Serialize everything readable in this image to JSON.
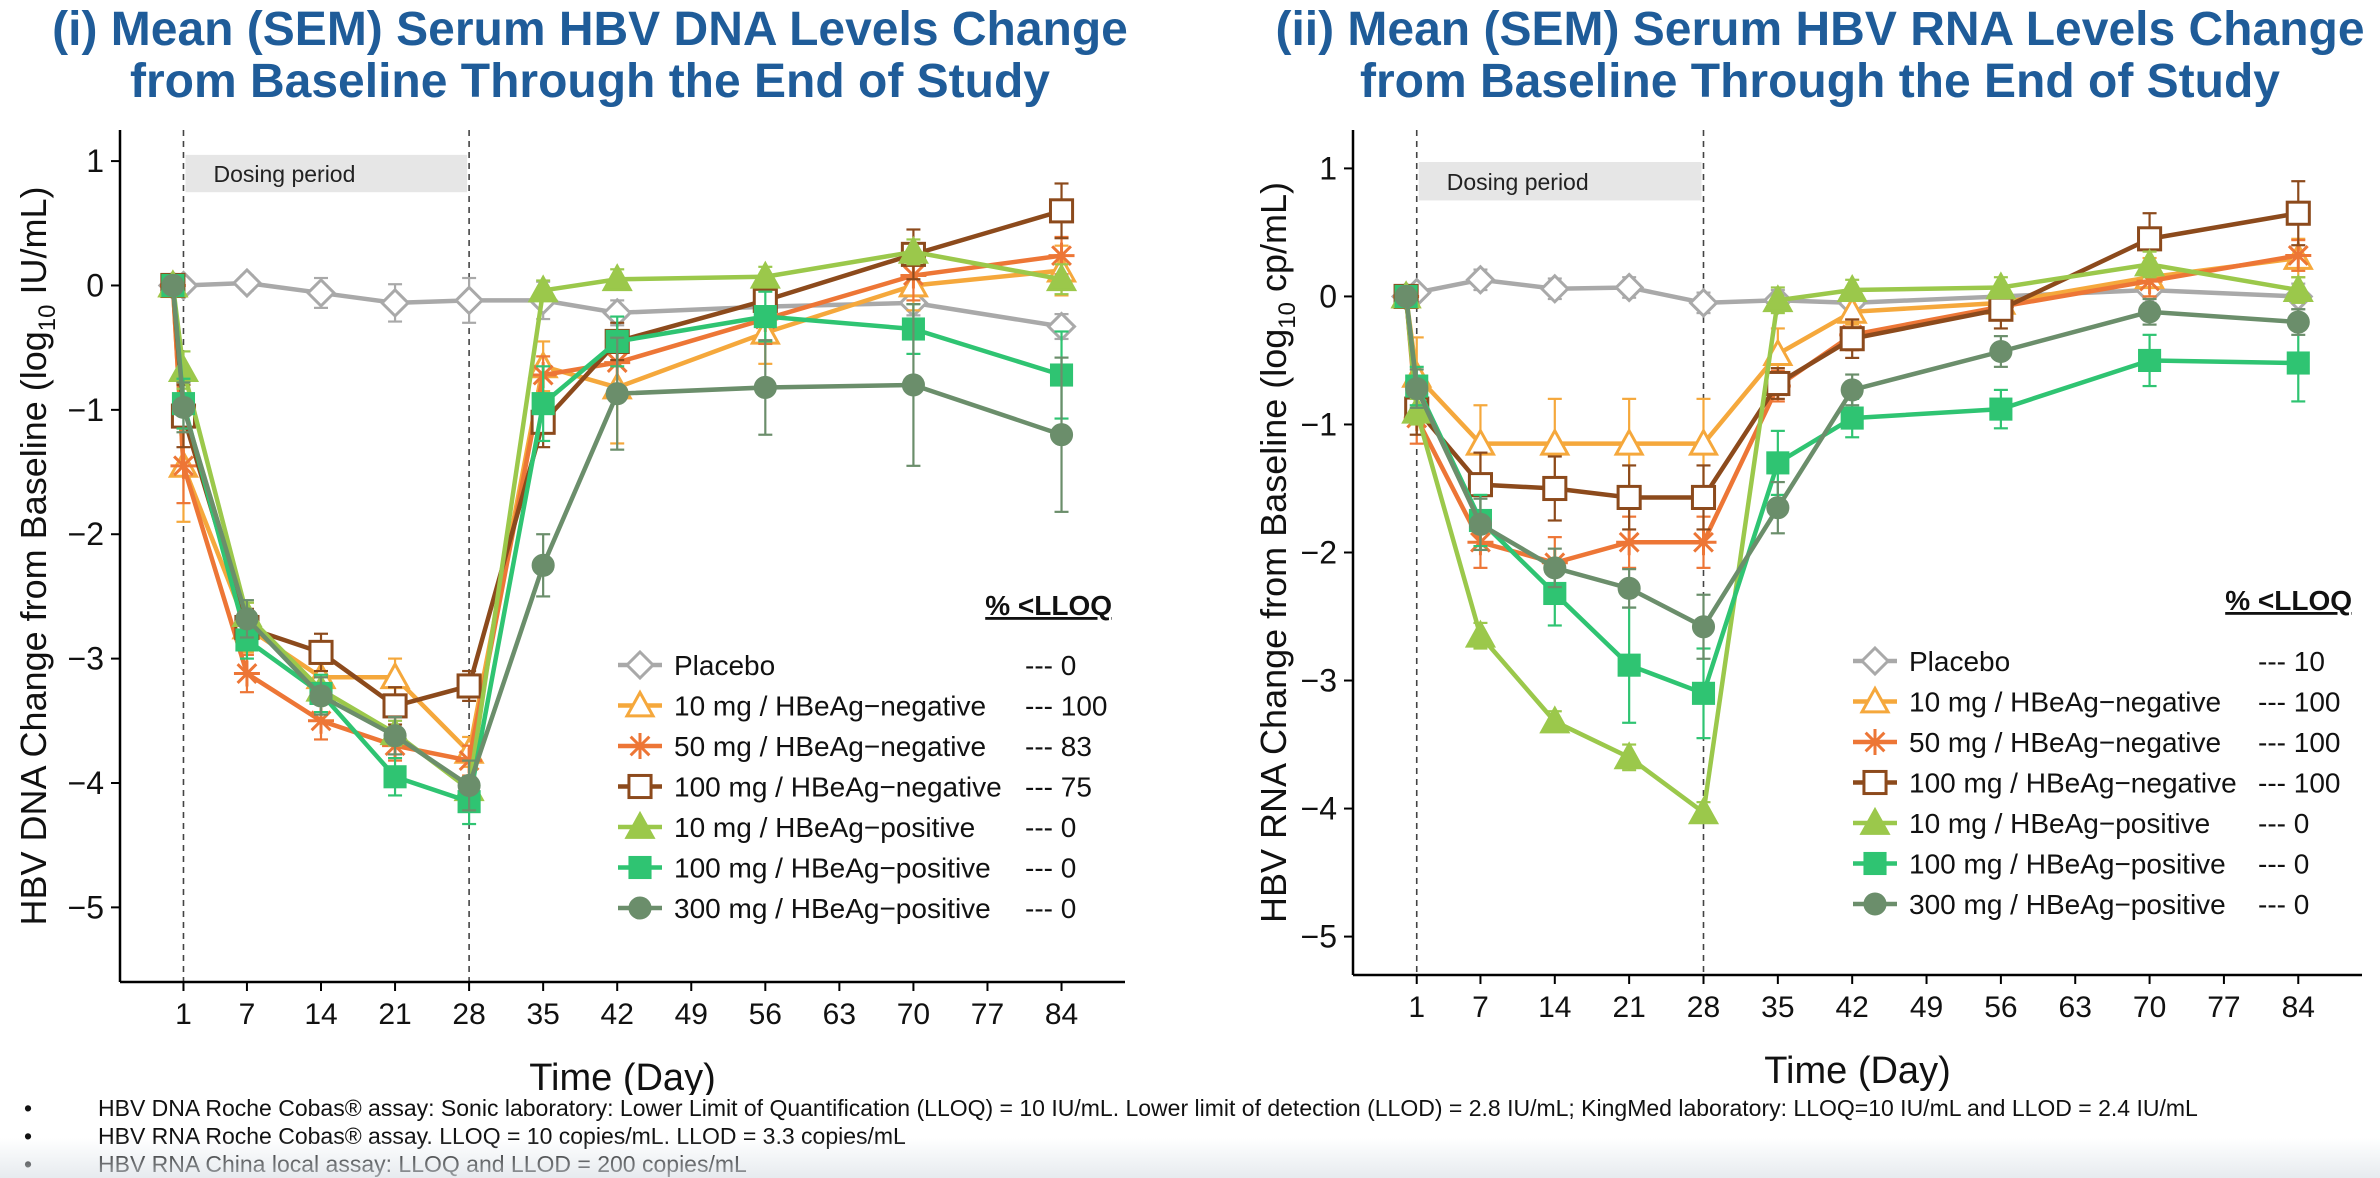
{
  "panels": {
    "left": {
      "title_line1": "(i) Mean (SEM) Serum HBV DNA Levels Change",
      "title_line2": "from Baseline Through the End of Study"
    },
    "right": {
      "title_line1": "(ii) Mean (SEM) Serum HBV RNA Levels Change",
      "title_line2": "from Baseline Through the End of Study"
    }
  },
  "footnotes": [
    "HBV DNA Roche Cobas® assay:  Sonic laboratory: Lower Limit of Quantification (LLOQ) = 10 IU/mL. Lower limit of detection (LLOD) =  2.8 IU/mL; KingMed  laboratory: LLOQ=10 IU/mL and LLOD = 2.4 IU/mL",
    "HBV RNA Roche Cobas® assay. LLOQ = 10 copies/mL.  LLOD = 3.3 copies/mL",
    "HBV RNA China local assay: LLOQ and LLOD = 200 copies/mL"
  ],
  "footnote_bullet": "•",
  "chart_data": [
    {
      "type": "line",
      "title": "(i) Mean (SEM) Serum HBV DNA Levels Change from Baseline Through the End of Study",
      "xlabel": "Time (Day)",
      "ylabel_pre": "HBV  DNA  Change  from  Baseline  (log",
      "ylabel_sub": "10",
      "ylabel_post": "  IU/mL)",
      "xticks": [
        1,
        7,
        14,
        21,
        28,
        35,
        42,
        49,
        56,
        63,
        70,
        77,
        84
      ],
      "yticks": [
        1,
        0,
        -1,
        -2,
        -3,
        -4,
        -5
      ],
      "ytick_labels": [
        "1",
        "0",
        "−1",
        "−2",
        "−3",
        "−4",
        "−5"
      ],
      "xlim": [
        -5,
        90
      ],
      "ylim": [
        -5.6,
        1.25
      ],
      "dosing_label": "Dosing period",
      "dosing_range": [
        1,
        28
      ],
      "legend_header": "% <LLOQ",
      "series": [
        {
          "name": "Placebo",
          "lloq_text": "--- 0",
          "color": "#a9a9a9",
          "marker": "diamond",
          "x": [
            0,
            1,
            7,
            14,
            21,
            28,
            35,
            42,
            56,
            70,
            84
          ],
          "y": [
            0,
            0,
            0.02,
            -0.06,
            -0.14,
            -0.12,
            -0.12,
            -0.22,
            -0.17,
            -0.14,
            -0.33
          ],
          "err": [
            0,
            0.05,
            0.06,
            0.12,
            0.15,
            0.18,
            0.15,
            0.1,
            0.08,
            0.1,
            0.1
          ]
        },
        {
          "name": "10 mg / HBeAg−negative",
          "lloq_text": "--- 100",
          "color": "#f5a83c",
          "marker": "triangle-open",
          "x": [
            0,
            1,
            7,
            14,
            21,
            28,
            35,
            42,
            56,
            70,
            84
          ],
          "y": [
            0,
            -1.45,
            -2.75,
            -3.15,
            -3.15,
            -3.75,
            -0.65,
            -0.82,
            -0.38,
            0.0,
            0.12
          ],
          "err": [
            0,
            0.45,
            0.2,
            0.15,
            0.15,
            0.12,
            0.2,
            0.45,
            0.25,
            0.2,
            0.2
          ]
        },
        {
          "name": "50 mg / HBeAg−negative",
          "lloq_text": "--- 83",
          "color": "#ed7636",
          "marker": "star",
          "x": [
            0,
            1,
            7,
            14,
            21,
            28,
            35,
            42,
            56,
            70,
            84
          ],
          "y": [
            0,
            -1.45,
            -3.12,
            -3.5,
            -3.7,
            -3.82,
            -0.72,
            -0.62,
            -0.27,
            0.08,
            0.24
          ],
          "err": [
            0,
            0.3,
            0.15,
            0.15,
            0.12,
            0.12,
            0.15,
            0.2,
            0.2,
            0.2,
            0.15
          ]
        },
        {
          "name": "100 mg / HBeAg−negative",
          "lloq_text": "--- 75",
          "color": "#8c4a1c",
          "marker": "square-open",
          "x": [
            0,
            1,
            7,
            14,
            21,
            28,
            35,
            42,
            56,
            70,
            84
          ],
          "y": [
            0,
            -1.05,
            -2.75,
            -2.95,
            -3.38,
            -3.22,
            -1.1,
            -0.45,
            -0.12,
            0.25,
            0.6
          ],
          "err": [
            0,
            0.25,
            0.15,
            0.15,
            0.15,
            0.12,
            0.2,
            0.15,
            0.15,
            0.2,
            0.22
          ]
        },
        {
          "name": "10 mg / HBeAg−positive",
          "lloq_text": "--- 0",
          "color": "#9bc84b",
          "marker": "triangle",
          "x": [
            0,
            1,
            7,
            14,
            21,
            28,
            35,
            42,
            56,
            70,
            84
          ],
          "y": [
            0,
            -0.68,
            -2.65,
            -3.25,
            -3.6,
            -4.05,
            -0.04,
            0.05,
            0.07,
            0.27,
            0.05
          ],
          "err": [
            0,
            0.15,
            0.1,
            0.1,
            0.1,
            0.1,
            0.08,
            0.08,
            0.08,
            0.1,
            0.12
          ]
        },
        {
          "name": "100 mg / HBeAg−positive",
          "lloq_text": "--- 0",
          "color": "#2fc472",
          "marker": "square",
          "x": [
            0,
            1,
            7,
            14,
            21,
            28,
            35,
            42,
            56,
            70,
            84
          ],
          "y": [
            0,
            -0.95,
            -2.85,
            -3.28,
            -3.95,
            -4.15,
            -0.95,
            -0.45,
            -0.25,
            -0.35,
            -0.72
          ],
          "err": [
            0,
            0.2,
            0.15,
            0.15,
            0.15,
            0.18,
            0.3,
            0.2,
            0.2,
            0.2,
            0.35
          ]
        },
        {
          "name": "300 mg / HBeAg−positive",
          "lloq_text": "--- 0",
          "color": "#6b8e6b",
          "marker": "circle",
          "x": [
            0,
            1,
            7,
            14,
            21,
            28,
            35,
            42,
            56,
            70,
            84
          ],
          "y": [
            0,
            -0.98,
            -2.68,
            -3.3,
            -3.62,
            -4.02,
            -2.25,
            -0.87,
            -0.82,
            -0.8,
            -1.2
          ],
          "err": [
            0,
            0.2,
            0.15,
            0.15,
            0.15,
            0.2,
            0.25,
            0.45,
            0.38,
            0.65,
            0.62
          ]
        }
      ]
    },
    {
      "type": "line",
      "title": "(ii) Mean (SEM) Serum HBV RNA Levels Change from Baseline Through the End of Study",
      "xlabel": "Time (Day)",
      "ylabel_pre": "HBV  RNA  Change  from  Baseline  (log",
      "ylabel_sub": "10",
      "ylabel_post": "  cp/mL)",
      "xticks": [
        1,
        7,
        14,
        21,
        28,
        35,
        42,
        49,
        56,
        63,
        70,
        77,
        84
      ],
      "yticks": [
        1,
        0,
        -1,
        -2,
        -3,
        -4,
        -5
      ],
      "ytick_labels": [
        "1",
        "0",
        "−1",
        "−2",
        "−3",
        "−4",
        "−5"
      ],
      "xlim": [
        -5,
        90
      ],
      "ylim": [
        -5.3,
        1.3
      ],
      "dosing_label": "Dosing period",
      "dosing_range": [
        1,
        28
      ],
      "legend_header": "% <LLOQ",
      "series": [
        {
          "name": "Placebo",
          "lloq_text": "--- 10",
          "color": "#a9a9a9",
          "marker": "diamond",
          "x": [
            0,
            1,
            7,
            14,
            21,
            28,
            35,
            42,
            56,
            70,
            84
          ],
          "y": [
            0,
            0.03,
            0.13,
            0.06,
            0.07,
            -0.05,
            -0.03,
            -0.05,
            0.0,
            0.05,
            0.0
          ],
          "err": [
            0,
            0.05,
            0.08,
            0.08,
            0.08,
            0.08,
            0.08,
            0.08,
            0.08,
            0.1,
            0.1
          ]
        },
        {
          "name": "10 mg / HBeAg−negative",
          "lloq_text": "--- 100",
          "color": "#f5a83c",
          "marker": "triangle-open",
          "x": [
            0,
            1,
            7,
            14,
            21,
            28,
            35,
            42,
            56,
            70,
            84
          ],
          "y": [
            0,
            -0.62,
            -1.15,
            -1.15,
            -1.15,
            -1.15,
            -0.45,
            -0.12,
            -0.05,
            0.15,
            0.3
          ],
          "err": [
            0,
            0.3,
            0.3,
            0.35,
            0.35,
            0.35,
            0.2,
            0.1,
            0.1,
            0.15,
            0.15
          ]
        },
        {
          "name": "50 mg / HBeAg−negative",
          "lloq_text": "--- 100",
          "color": "#ed7636",
          "marker": "star",
          "x": [
            0,
            1,
            7,
            14,
            21,
            28,
            35,
            42,
            56,
            70,
            84
          ],
          "y": [
            0,
            -0.95,
            -1.92,
            -2.08,
            -1.92,
            -1.92,
            -0.7,
            -0.3,
            -0.08,
            0.12,
            0.32
          ],
          "err": [
            0,
            0.2,
            0.2,
            0.2,
            0.2,
            0.2,
            0.12,
            0.12,
            0.1,
            0.12,
            0.12
          ]
        },
        {
          "name": "100 mg / HBeAg−negative",
          "lloq_text": "--- 100",
          "color": "#8c4a1c",
          "marker": "square-open",
          "x": [
            0,
            1,
            7,
            14,
            21,
            28,
            35,
            42,
            56,
            70,
            84
          ],
          "y": [
            0,
            -0.88,
            -1.47,
            -1.5,
            -1.57,
            -1.57,
            -0.68,
            -0.33,
            -0.1,
            0.45,
            0.65
          ],
          "err": [
            0,
            0.2,
            0.25,
            0.25,
            0.25,
            0.25,
            0.12,
            0.15,
            0.15,
            0.2,
            0.25
          ]
        },
        {
          "name": "10 mg / HBeAg−positive",
          "lloq_text": "--- 0",
          "color": "#9bc84b",
          "marker": "triangle",
          "x": [
            0,
            1,
            7,
            14,
            21,
            28,
            35,
            42,
            56,
            70,
            84
          ],
          "y": [
            0,
            -0.9,
            -2.65,
            -3.32,
            -3.6,
            -4.03,
            -0.03,
            0.05,
            0.07,
            0.25,
            0.05
          ],
          "err": [
            0,
            0.1,
            0.1,
            0.08,
            0.1,
            0.08,
            0.1,
            0.08,
            0.08,
            0.1,
            0.1
          ]
        },
        {
          "name": "100 mg / HBeAg−positive",
          "lloq_text": "--- 0",
          "color": "#2fc472",
          "marker": "square",
          "x": [
            0,
            1,
            7,
            14,
            21,
            28,
            35,
            42,
            56,
            70,
            84
          ],
          "y": [
            0,
            -0.7,
            -1.75,
            -2.32,
            -2.88,
            -3.1,
            -1.3,
            -0.95,
            -0.88,
            -0.5,
            -0.52
          ],
          "err": [
            0,
            0.15,
            0.2,
            0.25,
            0.45,
            0.35,
            0.25,
            0.15,
            0.15,
            0.2,
            0.3
          ]
        },
        {
          "name": "300 mg / HBeAg−positive",
          "lloq_text": "--- 0",
          "color": "#6b8e6b",
          "marker": "circle",
          "x": [
            0,
            1,
            7,
            14,
            21,
            28,
            35,
            42,
            56,
            70,
            84
          ],
          "y": [
            0,
            -0.72,
            -1.78,
            -2.12,
            -2.28,
            -2.58,
            -1.65,
            -0.73,
            -0.43,
            -0.12,
            -0.2
          ],
          "err": [
            0,
            0.15,
            0.2,
            0.15,
            0.15,
            0.25,
            0.2,
            0.12,
            0.12,
            0.1,
            0.1
          ]
        }
      ]
    }
  ]
}
